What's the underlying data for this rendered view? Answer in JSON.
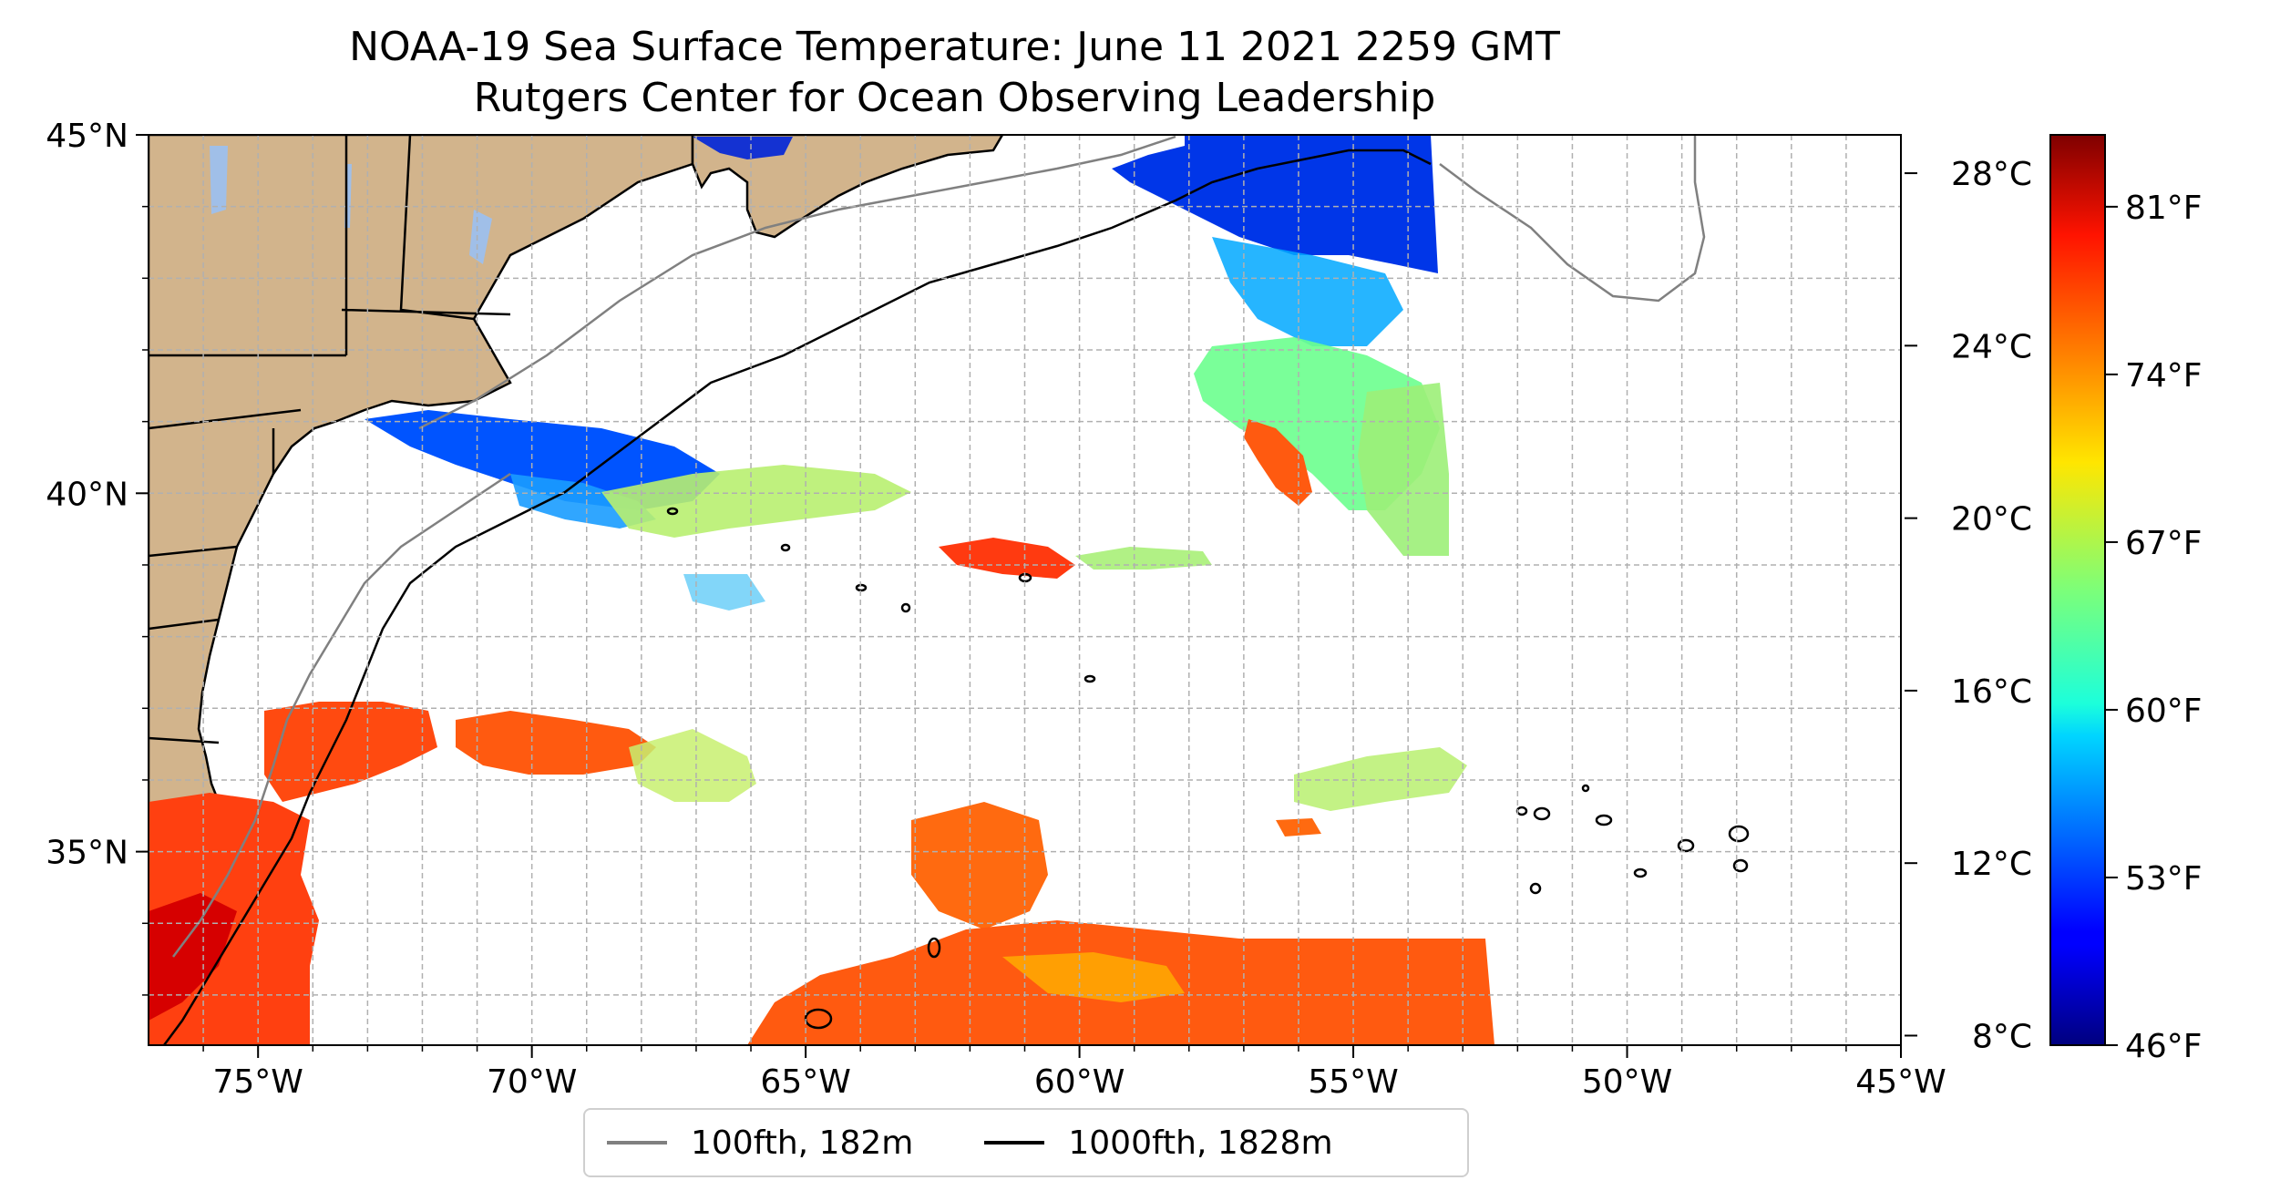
{
  "title": {
    "line1": "NOAA-19 Sea Surface Temperature: June 11 2021 2259 GMT",
    "line2": "Rutgers Center for Ocean Observing Leadership"
  },
  "map": {
    "lon_range": [
      -77,
      -45
    ],
    "lat_range": [
      32.3,
      45
    ],
    "lat_ticks": [
      {
        "lat": 45,
        "label": "45°N"
      },
      {
        "lat": 40,
        "label": "40°N"
      },
      {
        "lat": 35,
        "label": "35°N"
      }
    ],
    "lon_ticks": [
      {
        "lon": -75,
        "label": "75°W"
      },
      {
        "lon": -70,
        "label": "70°W"
      },
      {
        "lon": -65,
        "label": "65°W"
      },
      {
        "lon": -60,
        "label": "60°W"
      },
      {
        "lon": -55,
        "label": "55°W"
      },
      {
        "lon": -50,
        "label": "50°W"
      },
      {
        "lon": -45,
        "label": "45°W"
      }
    ],
    "land_color": "#d2b48c",
    "water_color": "#a0bfe8"
  },
  "colorbar": {
    "colormap": "jet",
    "celsius_ticks": [
      {
        "value": 8,
        "label": "8°C"
      },
      {
        "value": 12,
        "label": "12°C"
      },
      {
        "value": 16,
        "label": "16°C"
      },
      {
        "value": 20,
        "label": "20°C"
      },
      {
        "value": 24,
        "label": "24°C"
      },
      {
        "value": 28,
        "label": "28°C"
      }
    ],
    "fahrenheit_ticks": [
      {
        "value": 46,
        "label": "46°F"
      },
      {
        "value": 53,
        "label": "53°F"
      },
      {
        "value": 60,
        "label": "60°F"
      },
      {
        "value": 67,
        "label": "67°F"
      },
      {
        "value": 74,
        "label": "74°F"
      },
      {
        "value": 81,
        "label": "81°F"
      }
    ],
    "fahrenheit_range": [
      46,
      84
    ]
  },
  "legend": {
    "items": [
      {
        "label": "100fth, 182m",
        "color": "#808080"
      },
      {
        "label": "1000fth, 1828m",
        "color": "#000000"
      }
    ]
  }
}
